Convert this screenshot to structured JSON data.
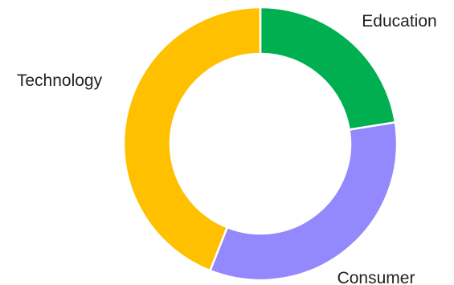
{
  "chart_data": {
    "type": "pie",
    "donut": true,
    "start": "top, clockwise",
    "slices": [
      {
        "label": "Education",
        "value": 22.5,
        "color": "#00b050"
      },
      {
        "label": "Consumer",
        "value": 33.5,
        "color": "#9488fd"
      },
      {
        "label": "Technology",
        "value": 44.0,
        "color": "#ffc000"
      }
    ]
  }
}
